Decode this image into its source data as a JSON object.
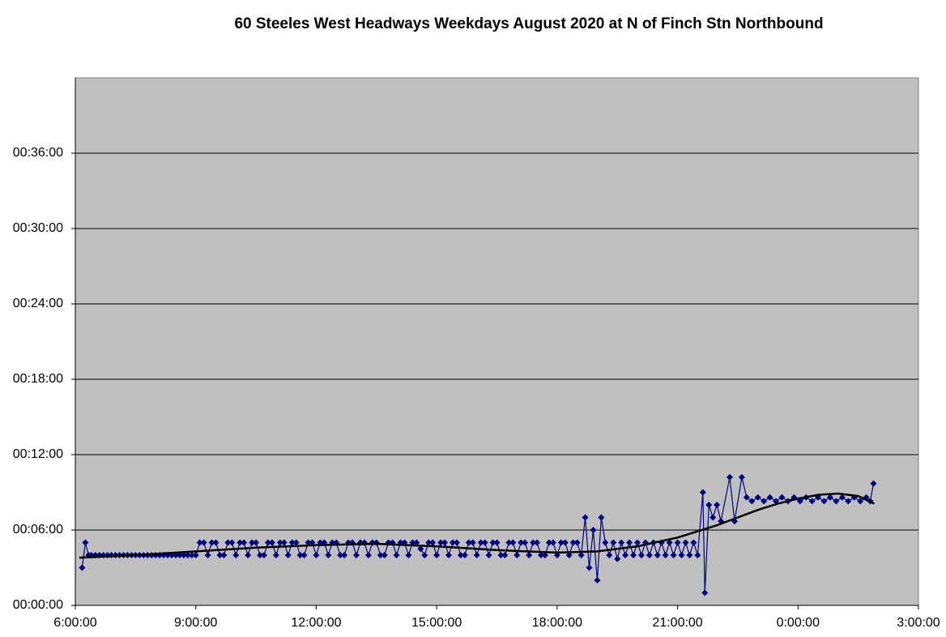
{
  "chart_data": {
    "type": "line",
    "title": "60 Steeles West Headways Weekdays August 2020 at N of Finch Stn Northbound",
    "xlim": [
      6,
      27
    ],
    "xticks": [
      {
        "value": 6,
        "label": "6:00:00"
      },
      {
        "value": 9,
        "label": "9:00:00"
      },
      {
        "value": 12,
        "label": "12:00:00"
      },
      {
        "value": 15,
        "label": "15:00:00"
      },
      {
        "value": 18,
        "label": "18:00:00"
      },
      {
        "value": 21,
        "label": "21:00:00"
      },
      {
        "value": 24,
        "label": "0:00:00"
      },
      {
        "value": 27,
        "label": "3:00:00"
      }
    ],
    "ylim": [
      0,
      42
    ],
    "yticks": [
      {
        "value": 0,
        "label": "00:00:00"
      },
      {
        "value": 6,
        "label": "00:06:00"
      },
      {
        "value": 12,
        "label": "00:12:00"
      },
      {
        "value": 18,
        "label": "00:18:00"
      },
      {
        "value": 24,
        "label": "00:24:00"
      },
      {
        "value": 30,
        "label": "00:30:00"
      },
      {
        "value": 36,
        "label": "00:36:00"
      }
    ],
    "grid": true,
    "background": "#c0c0c0",
    "series": [
      {
        "color": "#000080",
        "marker": "diamond",
        "x": [
          6.17,
          6.25,
          6.33,
          6.4,
          6.5,
          6.6,
          6.7,
          6.8,
          6.9,
          7.0,
          7.1,
          7.2,
          7.3,
          7.4,
          7.5,
          7.6,
          7.7,
          7.8,
          7.9,
          8.0,
          8.1,
          8.2,
          8.3,
          8.4,
          8.5,
          8.6,
          8.7,
          8.8,
          8.9,
          9.0,
          9.1,
          9.2,
          9.3,
          9.4,
          9.5,
          9.6,
          9.7,
          9.8,
          9.9,
          10.0,
          10.1,
          10.2,
          10.3,
          10.4,
          10.5,
          10.6,
          10.7,
          10.8,
          10.9,
          11.0,
          11.1,
          11.2,
          11.3,
          11.4,
          11.5,
          11.6,
          11.7,
          11.8,
          11.9,
          12.0,
          12.1,
          12.2,
          12.3,
          12.4,
          12.5,
          12.6,
          12.7,
          12.8,
          12.9,
          13.0,
          13.1,
          13.2,
          13.3,
          13.4,
          13.5,
          13.6,
          13.7,
          13.8,
          13.9,
          14.0,
          14.1,
          14.2,
          14.3,
          14.4,
          14.5,
          14.6,
          14.7,
          14.8,
          14.9,
          15.0,
          15.1,
          15.2,
          15.3,
          15.4,
          15.5,
          15.6,
          15.7,
          15.8,
          15.9,
          16.0,
          16.1,
          16.2,
          16.3,
          16.4,
          16.5,
          16.6,
          16.7,
          16.8,
          16.9,
          17.0,
          17.1,
          17.2,
          17.3,
          17.4,
          17.5,
          17.6,
          17.7,
          17.8,
          17.9,
          18.0,
          18.1,
          18.2,
          18.3,
          18.4,
          18.5,
          18.6,
          18.7,
          18.8,
          18.9,
          19.0,
          19.1,
          19.2,
          19.3,
          19.4,
          19.5,
          19.6,
          19.7,
          19.8,
          19.9,
          20.0,
          20.1,
          20.2,
          20.3,
          20.4,
          20.5,
          20.6,
          20.7,
          20.8,
          20.9,
          21.0,
          21.1,
          21.2,
          21.3,
          21.4,
          21.5,
          21.63,
          21.68,
          21.78,
          21.88,
          21.98,
          22.08,
          22.3,
          22.42,
          22.6,
          22.72,
          22.85,
          23.0,
          23.15,
          23.3,
          23.45,
          23.6,
          23.75,
          23.9,
          24.05,
          24.2,
          24.35,
          24.5,
          24.65,
          24.8,
          24.95,
          25.1,
          25.25,
          25.4,
          25.55,
          25.7,
          25.8,
          25.88
        ],
        "values": [
          3,
          5,
          4,
          4,
          4,
          4,
          4,
          4,
          4,
          4,
          4,
          4,
          4,
          4,
          4,
          4,
          4,
          4,
          4,
          4,
          4,
          4,
          4,
          4,
          4,
          4,
          4,
          4,
          4,
          4,
          5,
          5,
          4,
          5,
          5,
          4,
          4,
          5,
          5,
          4,
          5,
          5,
          4,
          5,
          5,
          4,
          4,
          5,
          5,
          4,
          5,
          5,
          4,
          5,
          5,
          4,
          4,
          5,
          5,
          4,
          5,
          5,
          4,
          5,
          5,
          4,
          4,
          5,
          5,
          4,
          5,
          5,
          4,
          5,
          5,
          4,
          4,
          5,
          5,
          4,
          5,
          5,
          4,
          5,
          5,
          4.5,
          4,
          5,
          5,
          4,
          5,
          5,
          4,
          5,
          5,
          4,
          4,
          5,
          5,
          4,
          5,
          5,
          4,
          5,
          5,
          4,
          4,
          5,
          5,
          4,
          5,
          5,
          4,
          5,
          5,
          4,
          4,
          5,
          5,
          4,
          5,
          5,
          4,
          5,
          5,
          4,
          7,
          3,
          6,
          2,
          7,
          5,
          4,
          5,
          3.7,
          5,
          4,
          5,
          4,
          5,
          4,
          5,
          4,
          5,
          4,
          5,
          4,
          5,
          4,
          5,
          4,
          5,
          4,
          5,
          4,
          9,
          1,
          8,
          7,
          8,
          6.7,
          10.2,
          6.7,
          10.2,
          8.6,
          8.3,
          8.6,
          8.3,
          8.6,
          8.3,
          8.6,
          8.3,
          8.6,
          8.3,
          8.6,
          8.3,
          8.6,
          8.3,
          8.6,
          8.3,
          8.6,
          8.3,
          8.6,
          8.3,
          8.6,
          8.3,
          9.7
        ]
      },
      {
        "color": "#000000",
        "marker": "none",
        "x": [
          6.1,
          7.5,
          9,
          10.5,
          12,
          13.5,
          15,
          16.5,
          18,
          19,
          20,
          21,
          21.5,
          22,
          22.5,
          23,
          23.5,
          24,
          24.5,
          25,
          25.5,
          25.9
        ],
        "values": [
          3.8,
          4.0,
          4.3,
          4.6,
          4.8,
          4.9,
          4.7,
          4.4,
          4.2,
          4.3,
          4.7,
          5.4,
          5.9,
          6.4,
          7.0,
          7.6,
          8.1,
          8.5,
          8.8,
          8.9,
          8.7,
          8.1
        ]
      }
    ]
  }
}
